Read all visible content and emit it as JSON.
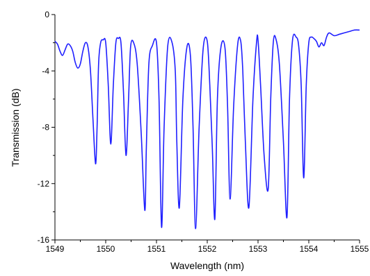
{
  "chart_data": {
    "type": "line",
    "title": "",
    "xlabel": "Wavelength (nm)",
    "ylabel": "Transmission (dB)",
    "xlim": [
      1549,
      1555
    ],
    "ylim": [
      -16,
      0
    ],
    "xticks": [
      1549,
      1550,
      1551,
      1552,
      1553,
      1554,
      1555
    ],
    "yticks": [
      0,
      -4,
      -8,
      -12,
      -16
    ],
    "grid": false,
    "legend": "none",
    "line_color": "#1f1fff",
    "series": [
      {
        "name": "",
        "x": [
          1549.0,
          1549.05,
          1549.1,
          1549.15,
          1549.2,
          1549.25,
          1549.3,
          1549.35,
          1549.4,
          1549.45,
          1549.5,
          1549.55,
          1549.6,
          1549.65,
          1549.7,
          1549.75,
          1549.8,
          1549.83,
          1549.86,
          1549.9,
          1549.95,
          1550.0,
          1550.05,
          1550.1,
          1550.15,
          1550.2,
          1550.25,
          1550.3,
          1550.35,
          1550.4,
          1550.45,
          1550.49,
          1550.55,
          1550.62,
          1550.7,
          1550.77,
          1550.8,
          1550.85,
          1550.92,
          1551.0,
          1551.05,
          1551.1,
          1551.15,
          1551.22,
          1551.3,
          1551.37,
          1551.4,
          1551.45,
          1551.52,
          1551.6,
          1551.67,
          1551.72,
          1551.77,
          1551.84,
          1551.92,
          1552.0,
          1552.05,
          1552.1,
          1552.15,
          1552.2,
          1552.27,
          1552.35,
          1552.4,
          1552.45,
          1552.52,
          1552.6,
          1552.66,
          1552.7,
          1552.75,
          1552.82,
          1552.9,
          1552.97,
          1553.0,
          1553.05,
          1553.12,
          1553.2,
          1553.25,
          1553.3,
          1553.35,
          1553.42,
          1553.5,
          1553.57,
          1553.62,
          1553.68,
          1553.75,
          1553.8,
          1553.85,
          1553.9,
          1553.95,
          1554.0,
          1554.05,
          1554.1,
          1554.15,
          1554.2,
          1554.25,
          1554.3,
          1554.35,
          1554.4,
          1554.5,
          1554.6,
          1554.7,
          1554.8,
          1554.9,
          1555.0
        ],
        "y": [
          -1.9,
          -2.1,
          -2.6,
          -2.9,
          -2.5,
          -2.1,
          -2.2,
          -2.6,
          -3.4,
          -3.8,
          -3.5,
          -2.6,
          -2.0,
          -2.3,
          -4.0,
          -7.5,
          -10.6,
          -8.0,
          -3.5,
          -2.0,
          -1.8,
          -2.0,
          -5.0,
          -9.2,
          -5.0,
          -2.0,
          -1.7,
          -2.0,
          -5.5,
          -10.0,
          -6.0,
          -2.3,
          -2.0,
          -3.5,
          -8.5,
          -13.9,
          -9.5,
          -3.5,
          -2.2,
          -2.0,
          -6.0,
          -15.1,
          -8.0,
          -2.3,
          -1.9,
          -4.0,
          -9.0,
          -13.7,
          -6.0,
          -2.3,
          -3.0,
          -8.0,
          -15.2,
          -8.0,
          -2.4,
          -1.9,
          -5.0,
          -9.5,
          -14.5,
          -6.0,
          -2.3,
          -2.4,
          -6.5,
          -13.1,
          -6.5,
          -2.1,
          -1.9,
          -4.0,
          -9.0,
          -13.7,
          -6.0,
          -2.0,
          -1.8,
          -5.0,
          -10.0,
          -12.4,
          -6.0,
          -2.0,
          -1.7,
          -3.5,
          -9.0,
          -14.4,
          -6.0,
          -1.8,
          -1.6,
          -2.2,
          -5.0,
          -11.6,
          -5.0,
          -2.0,
          -1.6,
          -1.7,
          -1.9,
          -2.3,
          -2.0,
          -2.2,
          -1.6,
          -1.3,
          -1.5,
          -1.4,
          -1.3,
          -1.2,
          -1.1,
          -1.1
        ]
      }
    ]
  }
}
